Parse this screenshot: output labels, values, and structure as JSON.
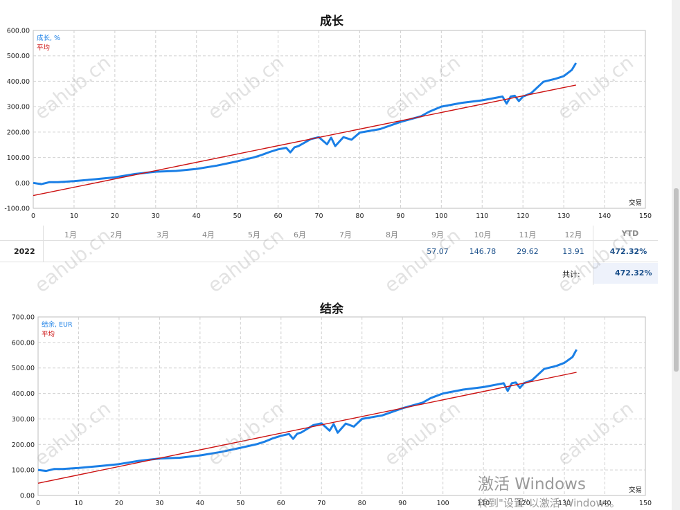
{
  "chart_data": [
    {
      "type": "line",
      "title": "成长",
      "xlabel": "交易",
      "xlim": [
        0,
        150
      ],
      "ylim": [
        -100,
        600
      ],
      "xticks": [
        "0",
        "10",
        "20",
        "30",
        "40",
        "50",
        "60",
        "70",
        "80",
        "90",
        "100",
        "110",
        "120",
        "130",
        "140",
        "150"
      ],
      "yticks": [
        "-100.00",
        "0.00",
        "100.00",
        "200.00",
        "300.00",
        "400.00",
        "500.00",
        "600.00"
      ],
      "grid": true,
      "legend_position": "top-left",
      "series": [
        {
          "name": "成长, %",
          "color": "#1a7fe6",
          "x": [
            0,
            2,
            4,
            6,
            10,
            15,
            20,
            25,
            30,
            35,
            40,
            45,
            50,
            54,
            56,
            58,
            60,
            62,
            63,
            64,
            65,
            68,
            70,
            72,
            73,
            74,
            76,
            78,
            80,
            85,
            90,
            95,
            97,
            100,
            105,
            110,
            115,
            116,
            117,
            118,
            119,
            120,
            122,
            125,
            126,
            128,
            130,
            132,
            133
          ],
          "y": [
            0,
            -5,
            3,
            3,
            7,
            14,
            22,
            35,
            44,
            47,
            55,
            68,
            85,
            100,
            110,
            122,
            132,
            138,
            120,
            140,
            145,
            172,
            180,
            152,
            178,
            145,
            180,
            170,
            198,
            212,
            240,
            262,
            280,
            300,
            315,
            325,
            340,
            312,
            340,
            343,
            322,
            340,
            353,
            398,
            402,
            410,
            420,
            445,
            472
          ]
        },
        {
          "name": "平均",
          "color": "#cc1111",
          "x": [
            0,
            133
          ],
          "y": [
            -50,
            385
          ]
        }
      ]
    },
    {
      "type": "line",
      "title": "结余",
      "xlabel": "交易",
      "xlim": [
        0,
        150
      ],
      "ylim": [
        0,
        700
      ],
      "xticks": [
        "0",
        "10",
        "20",
        "30",
        "40",
        "50",
        "60",
        "70",
        "80",
        "90",
        "100",
        "110",
        "120",
        "130",
        "140",
        "150"
      ],
      "yticks": [
        "0.00",
        "100.00",
        "200.00",
        "300.00",
        "400.00",
        "500.00",
        "600.00",
        "700.00"
      ],
      "grid": true,
      "legend_position": "top-left",
      "series": [
        {
          "name": "结余, EUR",
          "color": "#1a7fe6",
          "x": [
            0,
            2,
            4,
            6,
            10,
            15,
            20,
            25,
            30,
            35,
            40,
            45,
            50,
            54,
            56,
            58,
            60,
            62,
            63,
            64,
            65,
            68,
            70,
            72,
            73,
            74,
            76,
            78,
            80,
            85,
            90,
            95,
            97,
            100,
            105,
            110,
            115,
            116,
            117,
            118,
            119,
            120,
            122,
            125,
            126,
            128,
            130,
            132,
            133
          ],
          "y": [
            100,
            96,
            104,
            104,
            108,
            115,
            123,
            136,
            145,
            148,
            157,
            170,
            187,
            201,
            211,
            224,
            234,
            241,
            222,
            242,
            247,
            276,
            283,
            254,
            280,
            246,
            282,
            270,
            300,
            314,
            342,
            364,
            382,
            400,
            415,
            425,
            440,
            410,
            440,
            443,
            422,
            440,
            452,
            496,
            500,
            508,
            520,
            543,
            572
          ]
        },
        {
          "name": "平均",
          "color": "#cc1111",
          "x": [
            0,
            133
          ],
          "y": [
            48,
            483
          ]
        }
      ]
    }
  ],
  "monthly_table": {
    "months": [
      "1月",
      "2月",
      "3月",
      "4月",
      "5月",
      "6月",
      "7月",
      "8月",
      "9月",
      "10月",
      "11月",
      "12月"
    ],
    "ytd_label": "YTD",
    "year": "2022",
    "values": [
      "",
      "",
      "",
      "",
      "",
      "",
      "",
      "",
      "57.07",
      "146.78",
      "29.62",
      "13.91"
    ],
    "ytd_value": "472.32%",
    "total_label": "共计:",
    "total_value": "472.32%"
  },
  "watermark_text": "eahub.cn",
  "os_notice": {
    "line1": "激活 Windows",
    "line2": "转到\"设置\"以激活 Windows。"
  }
}
